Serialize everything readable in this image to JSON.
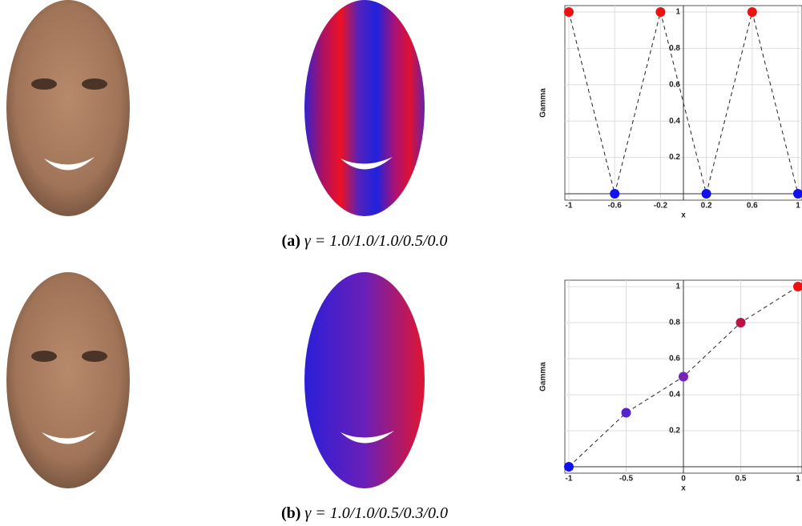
{
  "chart_data": [
    {
      "type": "line",
      "y_label": "Gamma",
      "x_label": "x",
      "x": [
        -1,
        -0.6,
        -0.2,
        0.2,
        0.6,
        1
      ],
      "values": [
        1,
        0,
        1,
        0,
        1,
        0
      ],
      "colors": [
        "#ee1111",
        "#1111ee",
        "#ee1111",
        "#1111ee",
        "#ee1111",
        "#1111ee"
      ],
      "xlim": [
        -1,
        1
      ],
      "ylim": [
        0,
        1
      ],
      "xticks": [
        -1,
        -0.6,
        -0.2,
        0.2,
        0.6,
        1
      ],
      "yticks": [
        0.2,
        0.4,
        0.6,
        0.8,
        1
      ],
      "grid": true
    },
    {
      "type": "line",
      "y_label": "Gamma",
      "x_label": "x",
      "x": [
        -1,
        -0.5,
        0,
        0.5,
        1
      ],
      "values": [
        0,
        0.3,
        0.5,
        0.8,
        1
      ],
      "colors": [
        "#1111ee",
        "#5522cc",
        "#7722bb",
        "#bb1144",
        "#ee1111"
      ],
      "xlim": [
        -1,
        1
      ],
      "ylim": [
        0,
        1
      ],
      "xticks": [
        -1,
        -0.5,
        0,
        0.5,
        1
      ],
      "yticks": [
        0.2,
        0.4,
        0.6,
        0.8,
        1
      ],
      "grid": true
    }
  ],
  "captions": [
    {
      "label": "(a)",
      "text": "γ = 1.0/1.0/1.0/0.5/0.0"
    },
    {
      "label": "(b)",
      "text": "γ = 1.0/1.0/0.5/0.3/0.0"
    }
  ]
}
